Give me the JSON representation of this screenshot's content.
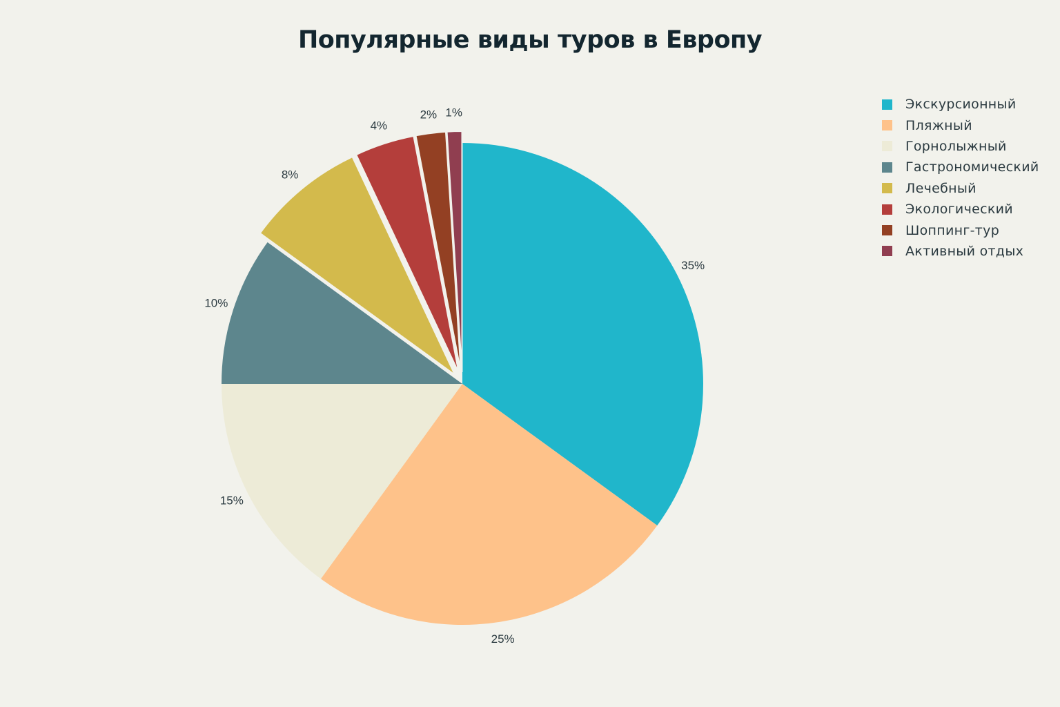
{
  "chart_data": {
    "type": "pie",
    "title": "Популярные виды туров в Европу",
    "categories": [
      "Экскурсионный",
      "Пляжный",
      "Горнолыжный",
      "Гастрономический",
      "Лечебный",
      "Экологический",
      "Шоппинг-тур",
      "Активный отдых"
    ],
    "values": [
      35,
      25,
      15,
      10,
      8,
      4,
      2,
      1
    ],
    "labels": [
      "35%",
      "25%",
      "15%",
      "10%",
      "8%",
      "4%",
      "2%",
      "1%"
    ],
    "colors": [
      "#20b6cb",
      "#fec28a",
      "#edebd7",
      "#5d868d",
      "#d3ba4c",
      "#b43e3b",
      "#934023",
      "#903e50"
    ],
    "pulled": [
      false,
      false,
      false,
      false,
      true,
      true,
      true,
      true
    ],
    "start_direction": "top, clockwise",
    "legend_position": "top-right"
  }
}
